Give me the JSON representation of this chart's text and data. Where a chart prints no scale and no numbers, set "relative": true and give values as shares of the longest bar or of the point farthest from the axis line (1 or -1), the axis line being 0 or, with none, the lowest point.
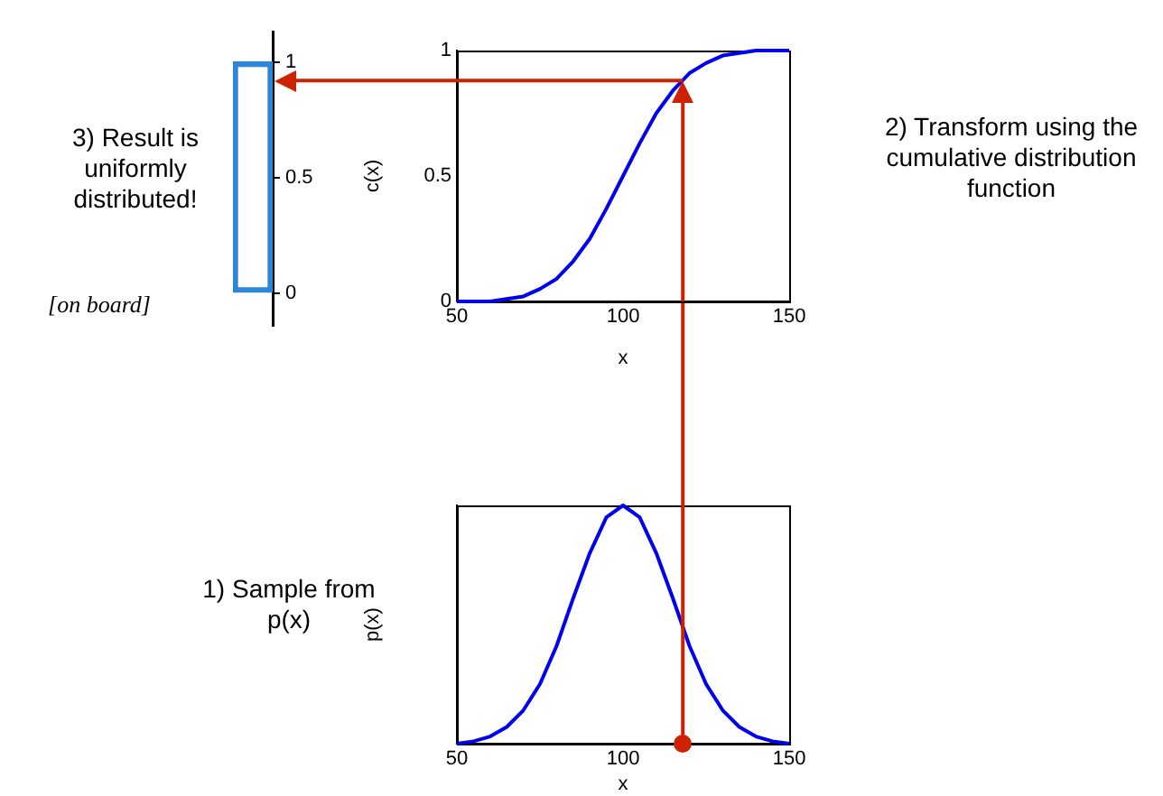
{
  "chart_data": [
    {
      "type": "line",
      "xlabel": "x",
      "ylabel": "c(x)",
      "x": [
        50,
        55,
        60,
        65,
        70,
        75,
        80,
        85,
        90,
        95,
        100,
        105,
        110,
        115,
        120,
        125,
        130,
        135,
        140,
        145,
        150
      ],
      "series": [
        {
          "color": "#0000ee",
          "values": [
            0,
            0,
            0,
            0.01,
            0.02,
            0.05,
            0.09,
            0.16,
            0.25,
            0.37,
            0.5,
            0.63,
            0.75,
            0.84,
            0.91,
            0.95,
            0.98,
            0.99,
            1,
            1,
            1
          ]
        }
      ],
      "xlim": [
        50,
        150
      ],
      "xticks": [
        50,
        100,
        150
      ],
      "ylim": [
        0,
        1
      ],
      "yticks": [
        0,
        0.5,
        1
      ],
      "grid": false,
      "legend": false,
      "marker": "none",
      "ref_lines": [
        {
          "axis": "x",
          "value": 118,
          "color": "#cc2200"
        },
        {
          "axis": "y",
          "value": 0.88,
          "color": "#cc2200"
        }
      ],
      "annotations": [
        "2) Transform using the cumulative distribution function"
      ]
    },
    {
      "type": "line",
      "xlabel": "x",
      "ylabel": "p(x)",
      "relative": true,
      "x": [
        50,
        55,
        60,
        65,
        70,
        75,
        80,
        85,
        90,
        95,
        100,
        105,
        110,
        115,
        120,
        125,
        130,
        135,
        140,
        145,
        150
      ],
      "series": [
        {
          "color": "#0000ee",
          "values": [
            0,
            0.01,
            0.03,
            0.07,
            0.14,
            0.25,
            0.41,
            0.61,
            0.8,
            0.95,
            1,
            0.95,
            0.8,
            0.61,
            0.41,
            0.25,
            0.14,
            0.07,
            0.03,
            0.01,
            0
          ]
        }
      ],
      "xlim": [
        50,
        150
      ],
      "xticks": [
        50,
        100,
        150
      ],
      "grid": false,
      "legend": false,
      "marker": "none",
      "tick_labels": "x",
      "ref_lines": [
        {
          "axis": "x",
          "value": 118,
          "color": "#cc2200"
        }
      ],
      "annotations": [
        "1) Sample from p(x)"
      ]
    },
    {
      "type": "bar",
      "categories": [
        null
      ],
      "series": [
        {
          "color": "#2e86d6",
          "values": [
            1
          ]
        }
      ],
      "ylim": [
        -0.14,
        1.13
      ],
      "yticks": [
        0,
        0.5,
        1
      ],
      "grid": false,
      "legend": false,
      "tick_labels": "y",
      "annotations": [
        "3) Result is uniformly distributed!",
        "[on board]"
      ]
    }
  ]
}
